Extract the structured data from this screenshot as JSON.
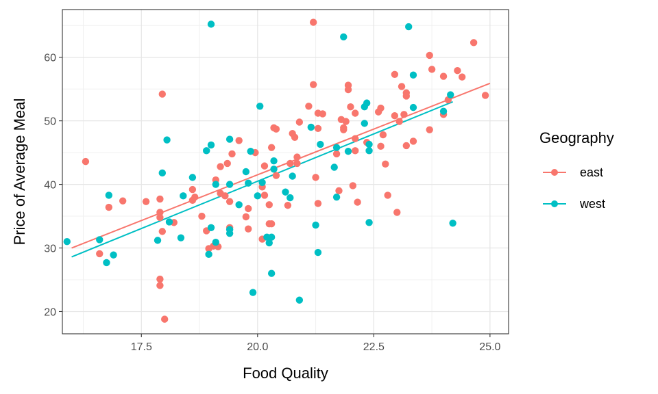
{
  "chart_data": {
    "type": "scatter",
    "xlabel": "Food Quality",
    "ylabel": "Price of Average Meal",
    "xlim": [
      15.8,
      25.4
    ],
    "ylim": [
      16.5,
      67.5
    ],
    "x_ticks": [
      17.5,
      20.0,
      22.5,
      25.0
    ],
    "x_tick_labels": [
      "17.5",
      "20.0",
      "22.5",
      "25.0"
    ],
    "y_ticks": [
      20,
      30,
      40,
      50,
      60
    ],
    "y_tick_labels": [
      "20",
      "30",
      "40",
      "50",
      "60"
    ],
    "grid": true,
    "legend": {
      "title": "Geography",
      "position": "right"
    },
    "series": [
      {
        "name": "east",
        "color": "#F8766D",
        "fit": {
          "x": [
            16.0,
            25.0
          ],
          "y": [
            30.0,
            55.9
          ]
        },
        "points": [
          [
            16.3,
            43.6
          ],
          [
            16.6,
            29.1
          ],
          [
            16.8,
            36.4
          ],
          [
            17.1,
            37.4
          ],
          [
            17.6,
            37.3
          ],
          [
            17.9,
            35.6
          ],
          [
            17.9,
            34.8
          ],
          [
            17.9,
            37.7
          ],
          [
            17.95,
            54.2
          ],
          [
            17.9,
            25.1
          ],
          [
            17.9,
            24.1
          ],
          [
            18.0,
            18.8
          ],
          [
            17.95,
            32.6
          ],
          [
            18.2,
            34.0
          ],
          [
            18.6,
            37.5
          ],
          [
            18.6,
            39.2
          ],
          [
            18.65,
            38.0
          ],
          [
            18.8,
            35.0
          ],
          [
            18.9,
            32.7
          ],
          [
            18.95,
            29.9
          ],
          [
            19.05,
            30.3
          ],
          [
            19.1,
            40.7
          ],
          [
            19.15,
            30.2
          ],
          [
            19.2,
            42.8
          ],
          [
            19.2,
            38.6
          ],
          [
            19.3,
            38.2
          ],
          [
            19.35,
            43.3
          ],
          [
            19.4,
            37.3
          ],
          [
            19.4,
            33.2
          ],
          [
            19.45,
            44.8
          ],
          [
            19.6,
            46.9
          ],
          [
            19.75,
            34.9
          ],
          [
            19.8,
            36.2
          ],
          [
            19.8,
            33.0
          ],
          [
            19.95,
            45.0
          ],
          [
            20.1,
            31.4
          ],
          [
            20.1,
            39.6
          ],
          [
            20.15,
            38.3
          ],
          [
            20.15,
            42.9
          ],
          [
            20.25,
            33.8
          ],
          [
            20.25,
            36.8
          ],
          [
            20.3,
            45.8
          ],
          [
            20.3,
            33.8
          ],
          [
            20.35,
            48.9
          ],
          [
            20.4,
            48.7
          ],
          [
            20.4,
            41.4
          ],
          [
            20.65,
            36.7
          ],
          [
            20.7,
            43.3
          ],
          [
            20.75,
            48.0
          ],
          [
            20.8,
            47.4
          ],
          [
            20.85,
            44.3
          ],
          [
            20.85,
            43.3
          ],
          [
            20.9,
            49.8
          ],
          [
            21.1,
            52.3
          ],
          [
            21.2,
            65.5
          ],
          [
            21.2,
            55.7
          ],
          [
            21.25,
            41.1
          ],
          [
            21.3,
            51.2
          ],
          [
            21.3,
            48.8
          ],
          [
            21.4,
            51.1
          ],
          [
            21.3,
            37.0
          ],
          [
            21.7,
            44.8
          ],
          [
            21.75,
            39.0
          ],
          [
            21.8,
            50.2
          ],
          [
            21.85,
            48.9
          ],
          [
            21.85,
            48.6
          ],
          [
            21.95,
            55.6
          ],
          [
            21.95,
            54.9
          ],
          [
            21.9,
            49.9
          ],
          [
            22.0,
            52.2
          ],
          [
            22.05,
            39.8
          ],
          [
            22.1,
            51.2
          ],
          [
            22.1,
            47.2
          ],
          [
            22.1,
            45.3
          ],
          [
            22.15,
            37.2
          ],
          [
            22.35,
            46.6
          ],
          [
            22.6,
            51.4
          ],
          [
            22.65,
            52.0
          ],
          [
            22.65,
            46.0
          ],
          [
            22.7,
            47.8
          ],
          [
            22.75,
            43.2
          ],
          [
            22.8,
            38.3
          ],
          [
            22.95,
            50.8
          ],
          [
            22.95,
            57.3
          ],
          [
            23.0,
            35.6
          ],
          [
            23.05,
            49.9
          ],
          [
            23.1,
            55.4
          ],
          [
            23.15,
            51.0
          ],
          [
            23.2,
            54.4
          ],
          [
            23.2,
            53.9
          ],
          [
            23.2,
            46.1
          ],
          [
            23.35,
            46.8
          ],
          [
            23.7,
            60.3
          ],
          [
            23.75,
            58.1
          ],
          [
            23.7,
            48.6
          ],
          [
            24.0,
            57.0
          ],
          [
            24.0,
            51.0
          ],
          [
            24.1,
            53.3
          ],
          [
            24.3,
            57.9
          ],
          [
            24.4,
            56.9
          ],
          [
            24.65,
            62.3
          ],
          [
            24.9,
            54.0
          ]
        ]
      },
      {
        "name": "west",
        "color": "#00BFC4",
        "fit": {
          "x": [
            16.0,
            24.2
          ],
          "y": [
            28.6,
            53.0
          ]
        },
        "points": [
          [
            15.9,
            31.0
          ],
          [
            16.6,
            31.3
          ],
          [
            16.75,
            27.7
          ],
          [
            16.8,
            38.3
          ],
          [
            16.9,
            28.9
          ],
          [
            17.85,
            31.2
          ],
          [
            17.95,
            41.8
          ],
          [
            18.05,
            47.0
          ],
          [
            18.1,
            34.1
          ],
          [
            18.35,
            31.6
          ],
          [
            18.4,
            38.2
          ],
          [
            18.6,
            41.1
          ],
          [
            18.9,
            45.3
          ],
          [
            18.95,
            29.0
          ],
          [
            19.0,
            65.2
          ],
          [
            19.0,
            46.2
          ],
          [
            19.0,
            33.2
          ],
          [
            19.1,
            40.0
          ],
          [
            19.1,
            30.9
          ],
          [
            19.4,
            40.0
          ],
          [
            19.4,
            47.1
          ],
          [
            19.4,
            32.9
          ],
          [
            19.4,
            32.3
          ],
          [
            19.6,
            36.8
          ],
          [
            19.75,
            42.0
          ],
          [
            19.8,
            40.2
          ],
          [
            19.85,
            45.2
          ],
          [
            19.9,
            23.0
          ],
          [
            20.0,
            38.2
          ],
          [
            20.05,
            52.3
          ],
          [
            20.1,
            40.3
          ],
          [
            20.2,
            31.7
          ],
          [
            20.25,
            30.8
          ],
          [
            20.3,
            31.7
          ],
          [
            20.3,
            26.0
          ],
          [
            20.35,
            42.4
          ],
          [
            20.35,
            43.7
          ],
          [
            20.6,
            38.8
          ],
          [
            20.7,
            37.9
          ],
          [
            20.75,
            41.3
          ],
          [
            20.9,
            21.8
          ],
          [
            21.15,
            49.0
          ],
          [
            21.25,
            33.6
          ],
          [
            21.3,
            29.3
          ],
          [
            21.35,
            46.3
          ],
          [
            21.65,
            42.7
          ],
          [
            21.7,
            38.0
          ],
          [
            21.7,
            45.8
          ],
          [
            21.85,
            63.2
          ],
          [
            21.95,
            45.2
          ],
          [
            22.3,
            52.2
          ],
          [
            22.3,
            49.6
          ],
          [
            22.35,
            52.8
          ],
          [
            22.4,
            34.0
          ],
          [
            22.4,
            45.3
          ],
          [
            22.4,
            46.3
          ],
          [
            23.25,
            64.8
          ],
          [
            23.35,
            57.2
          ],
          [
            23.35,
            52.1
          ],
          [
            24.0,
            51.5
          ],
          [
            24.15,
            54.1
          ],
          [
            24.2,
            33.9
          ]
        ]
      }
    ]
  }
}
